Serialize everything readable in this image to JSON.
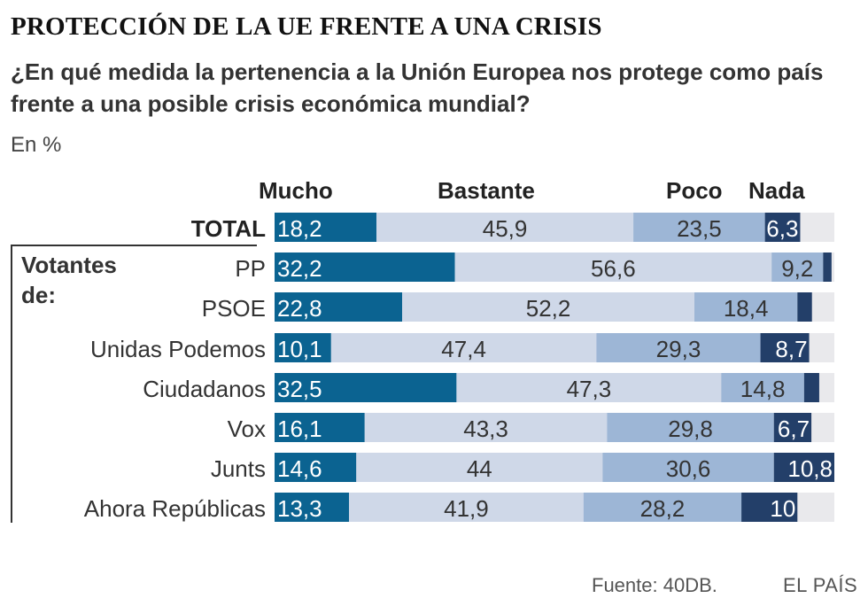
{
  "title": "PROTECCIÓN DE LA UE FRENTE A UNA CRISIS",
  "subtitle": "¿En qué medida la pertenencia a la Unión Europea nos protege como país frente a una posible crisis económica mundial?",
  "units": "En %",
  "voters_label": "Votantes de:",
  "footer": {
    "source": "Fuente: 40DB.",
    "brand": "EL PAÍS"
  },
  "colors": {
    "mucho": "#0b6391",
    "bastante": "#cfd8e8",
    "poco": "#9db6d6",
    "nada": "#233f69",
    "remainder": "#e9e9ec"
  },
  "chart_data": {
    "type": "bar",
    "orientation": "horizontal",
    "stacked": true,
    "xlim": [
      0,
      100
    ],
    "categories": [
      "TOTAL",
      "PP",
      "PSOE",
      "Unidas Podemos",
      "Ciudadanos",
      "Vox",
      "Junts",
      "Ahora Repúblicas"
    ],
    "series": [
      {
        "name": "Mucho",
        "values": [
          18.2,
          32.2,
          22.8,
          10.1,
          32.5,
          16.1,
          14.6,
          13.3
        ]
      },
      {
        "name": "Bastante",
        "values": [
          45.9,
          56.6,
          52.2,
          47.4,
          47.3,
          43.3,
          44,
          41.9
        ]
      },
      {
        "name": "Poco",
        "values": [
          23.5,
          9.2,
          18.4,
          29.3,
          14.8,
          29.8,
          30.6,
          28.2
        ]
      },
      {
        "name": "Nada",
        "values": [
          6.3,
          1.5,
          2.6,
          8.7,
          2.7,
          6.7,
          10.8,
          10
        ]
      }
    ],
    "value_labels": [
      [
        "18,2",
        "45,9",
        "23,5",
        "6,3"
      ],
      [
        "32,2",
        "56,6",
        "9,2",
        ""
      ],
      [
        "22,8",
        "52,2",
        "18,4",
        ""
      ],
      [
        "10,1",
        "47,4",
        "29,3",
        "8,7"
      ],
      [
        "32,5",
        "47,3",
        "14,8",
        ""
      ],
      [
        "16,1",
        "43,3",
        "29,8",
        "6,7"
      ],
      [
        "14,6",
        "44",
        "30,6",
        "10,8"
      ],
      [
        "13,3",
        "41,9",
        "28,2",
        "10"
      ]
    ],
    "title": "PROTECCIÓN DE LA UE FRENTE A UNA CRISIS",
    "xlabel": "",
    "ylabel": "",
    "unit": "En %"
  }
}
